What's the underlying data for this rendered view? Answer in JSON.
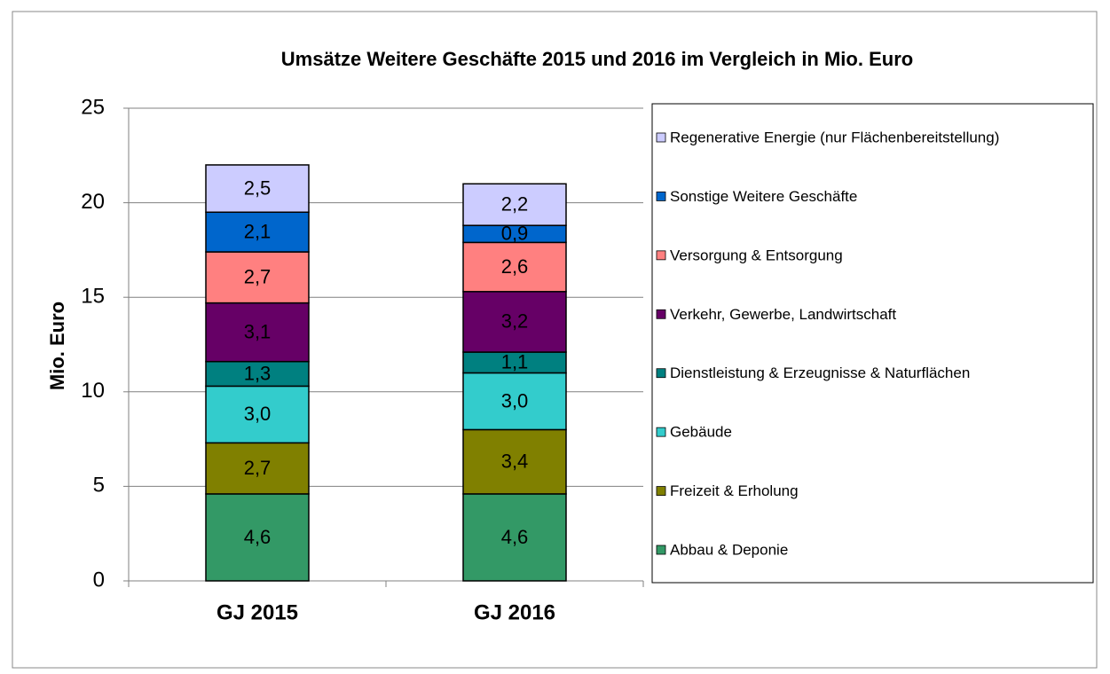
{
  "chart_data": {
    "type": "stacked_bar",
    "title": "Umsätze Weitere Geschäfte 2015 und 2016 im Vergleich in Mio. Euro",
    "y_label": "Mio. Euro",
    "categories": [
      "GJ 2015",
      "GJ 2016"
    ],
    "series": [
      {
        "name": "Abbau & Deponie",
        "color": "#339966",
        "values": [
          4.6,
          4.6
        ],
        "value_labels": [
          "4,6",
          "4,6"
        ]
      },
      {
        "name": "Freizeit & Erholung",
        "color": "#808000",
        "values": [
          2.7,
          3.4
        ],
        "value_labels": [
          "2,7",
          "3,4"
        ]
      },
      {
        "name": "Gebäude",
        "color": "#33cccc",
        "values": [
          3.0,
          3.0
        ],
        "value_labels": [
          "3,0",
          "3,0"
        ]
      },
      {
        "name": "Dienstleistung & Erzeugnisse & Naturflächen",
        "color": "#008080",
        "values": [
          1.3,
          1.1
        ],
        "value_labels": [
          "1,3",
          "1,1"
        ]
      },
      {
        "name": "Verkehr, Gewerbe, Landwirtschaft",
        "color": "#660066",
        "values": [
          3.1,
          3.2
        ],
        "value_labels": [
          "3,1",
          "3,2"
        ]
      },
      {
        "name": "Versorgung & Entsorgung",
        "color": "#ff8080",
        "values": [
          2.7,
          2.6
        ],
        "value_labels": [
          "2,7",
          "2,6"
        ]
      },
      {
        "name": "Sonstige Weitere Geschäfte",
        "color": "#0066cc",
        "values": [
          2.1,
          0.9
        ],
        "value_labels": [
          "2,1",
          "0,9"
        ]
      },
      {
        "name": "Regenerative Energie (nur Flächenbereitstellung)",
        "color": "#ccccff",
        "values": [
          2.5,
          2.2
        ],
        "value_labels": [
          "2,5",
          "2,2"
        ]
      }
    ],
    "ylim": [
      0,
      25
    ],
    "yticks": [
      0,
      5,
      10,
      15,
      20,
      25
    ],
    "grid": true,
    "legend": "right"
  }
}
